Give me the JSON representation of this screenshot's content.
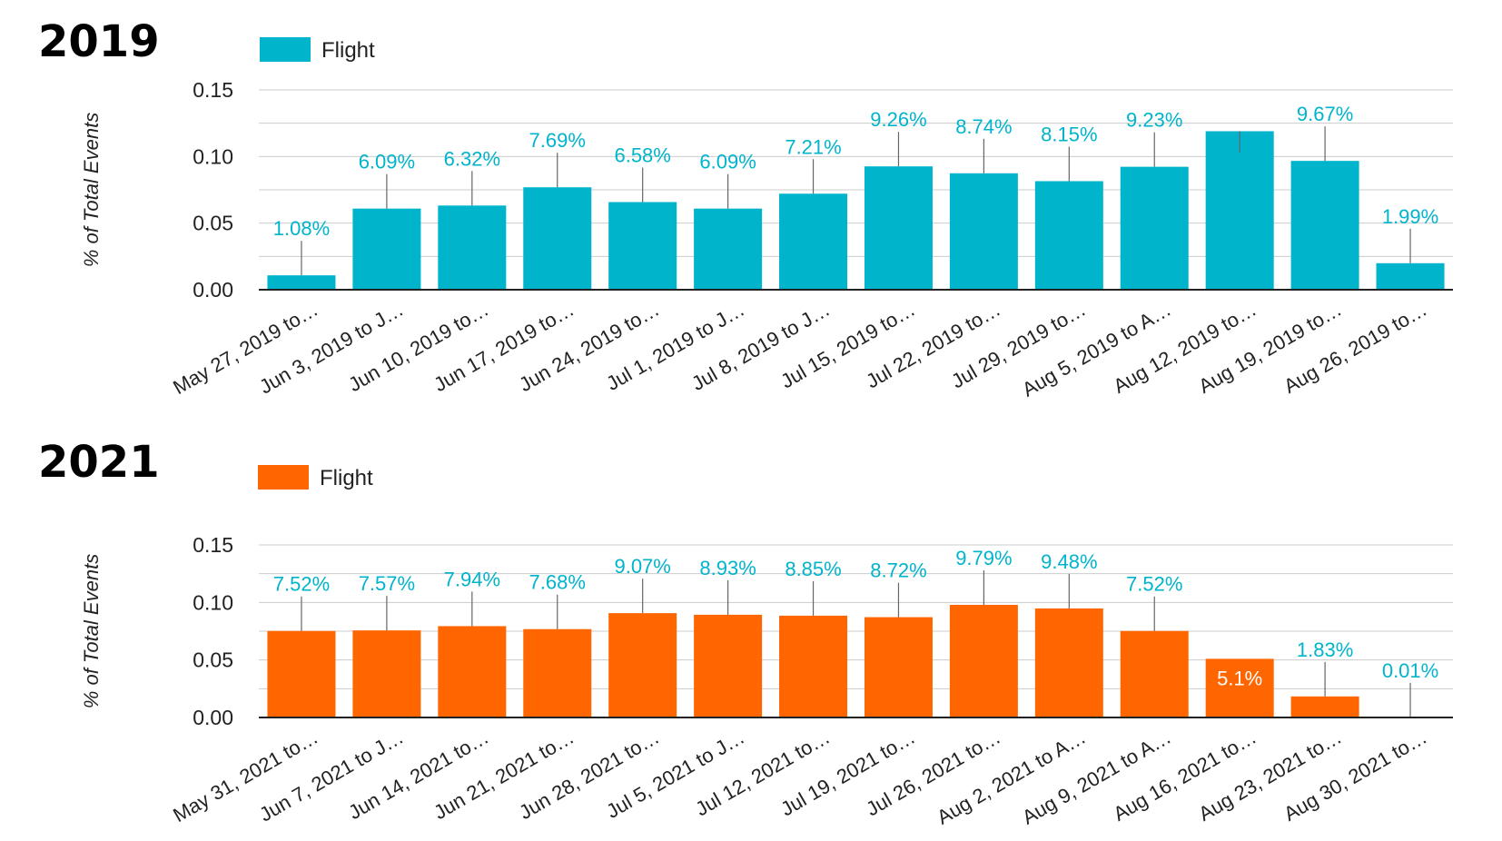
{
  "chart_data": [
    {
      "type": "bar",
      "title": "2019",
      "legend": [
        "Flight"
      ],
      "legend_position": "top-left",
      "ylabel": "% of Total Events",
      "xlabel": "",
      "ylim": [
        0,
        0.15
      ],
      "yticks": [
        "0.00",
        "0.05",
        "0.10",
        "0.15"
      ],
      "grid": true,
      "color": "#00B4CC",
      "label_color": "#00B4CC",
      "categories": [
        "May 27, 2019 to…",
        "Jun 3, 2019 to J…",
        "Jun 10, 2019 to…",
        "Jun 17, 2019 to…",
        "Jun 24, 2019 to…",
        "Jul 1, 2019 to J…",
        "Jul 8, 2019 to J…",
        "Jul 15, 2019 to…",
        "Jul 22, 2019 to…",
        "Jul 29, 2019 to…",
        "Aug 5, 2019 to A…",
        "Aug 12, 2019 to…",
        "Aug 19, 2019 to…",
        "Aug 26, 2019 to…"
      ],
      "series": [
        {
          "name": "Flight",
          "values": [
            0.0108,
            0.0609,
            0.0632,
            0.0769,
            0.0658,
            0.0609,
            0.0721,
            0.0926,
            0.0874,
            0.0815,
            0.0923,
            0.119,
            0.0967,
            0.0199
          ],
          "labels": [
            "1.08%",
            "6.09%",
            "6.32%",
            "7.69%",
            "6.58%",
            "6.09%",
            "7.21%",
            "9.26%",
            "8.74%",
            "8.15%",
            "9.23%",
            "",
            "9.67%",
            "1.99%"
          ]
        }
      ]
    },
    {
      "type": "bar",
      "title": "2021",
      "legend": [
        "Flight"
      ],
      "legend_position": "top-left",
      "ylabel": "% of Total Events",
      "xlabel": "",
      "ylim": [
        0,
        0.15
      ],
      "yticks": [
        "0.00",
        "0.05",
        "0.10",
        "0.15"
      ],
      "grid": true,
      "color": "#FF6600",
      "label_color": "#00B4CC",
      "inside_label_color": "#FFFFFF",
      "categories": [
        "May 31, 2021 to…",
        "Jun 7, 2021 to J…",
        "Jun 14, 2021 to…",
        "Jun 21, 2021 to…",
        "Jun 28, 2021 to…",
        "Jul 5, 2021 to J…",
        "Jul 12, 2021 to…",
        "Jul 19, 2021 to…",
        "Jul 26, 2021 to…",
        "Aug 2, 2021 to A…",
        "Aug 9, 2021 to A…",
        "Aug 16, 2021 to…",
        "Aug 23, 2021 to…",
        "Aug 30, 2021 to…"
      ],
      "series": [
        {
          "name": "Flight",
          "values": [
            0.0752,
            0.0757,
            0.0794,
            0.0768,
            0.0907,
            0.0893,
            0.0885,
            0.0872,
            0.0979,
            0.0948,
            0.0752,
            0.051,
            0.0183,
            0.0001
          ],
          "labels": [
            "7.52%",
            "7.57%",
            "7.94%",
            "7.68%",
            "9.07%",
            "8.93%",
            "8.85%",
            "8.72%",
            "9.79%",
            "9.48%",
            "7.52%",
            "5.1%",
            "1.83%",
            "0.01%"
          ]
        }
      ]
    }
  ]
}
